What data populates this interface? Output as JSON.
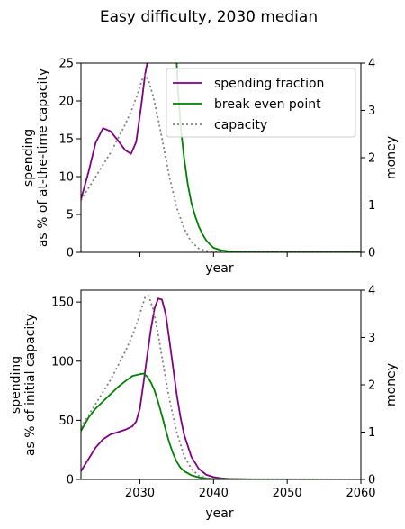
{
  "figure": {
    "title": "Easy difficulty, 2030 median"
  },
  "colors": {
    "spending_fraction": "#800080",
    "break_even_point": "#008000",
    "capacity": "#808080"
  },
  "chart_data": [
    {
      "type": "line",
      "panel": "top",
      "xlabel": "year",
      "ylabel_lines": [
        "spending",
        "as % of at-the-time capacity"
      ],
      "ylabel2": "money",
      "xlim": [
        2022,
        2060
      ],
      "ylim": [
        0,
        25
      ],
      "ylim2": [
        0,
        4
      ],
      "yticks": [
        0,
        5,
        10,
        15,
        20,
        25
      ],
      "yticks2": [
        0,
        1,
        2,
        3,
        4
      ],
      "xticks_show_labels": false,
      "legend": {
        "placement": "top-right",
        "entries": [
          "spending fraction",
          "break even point",
          "capacity"
        ]
      },
      "series": [
        {
          "name": "spending fraction",
          "axis": "left",
          "style": "solid",
          "color_key": "spending_fraction",
          "x": [
            2022,
            2023,
            2024,
            2025,
            2026,
            2027,
            2028,
            2028.8,
            2029.5,
            2030.2,
            2030.7,
            2031.0
          ],
          "y": [
            7,
            10.5,
            14.5,
            16.4,
            16.0,
            14.8,
            13.5,
            13.0,
            14.6,
            19.5,
            23.5,
            25
          ]
        },
        {
          "name": "break even point",
          "axis": "left",
          "style": "solid",
          "color_key": "break_even_point",
          "x": [
            2035.0,
            2035.2,
            2035.6,
            2036.0,
            2036.5,
            2037.0,
            2037.5,
            2038.0,
            2038.5,
            2039.0,
            2039.5,
            2040.0,
            2041.0,
            2042.0,
            2043.0,
            2045.0,
            2050.0,
            2060.0
          ],
          "y": [
            25,
            21,
            16,
            12.5,
            9,
            6.5,
            4.8,
            3.4,
            2.4,
            1.6,
            1.05,
            0.6,
            0.28,
            0.14,
            0.08,
            0.03,
            0.01,
            0.01
          ]
        },
        {
          "name": "capacity",
          "axis": "right",
          "style": "dotted",
          "color_key": "capacity",
          "x": [
            2022,
            2023,
            2024,
            2025,
            2026,
            2027,
            2028,
            2029,
            2029.8,
            2030.3,
            2030.7,
            2031.2,
            2031.8,
            2032.5,
            2033.2,
            2034,
            2035,
            2036,
            2037,
            2038,
            2039,
            2040,
            2041,
            2042,
            2060
          ],
          "y": [
            1.1,
            1.35,
            1.6,
            1.85,
            2.1,
            2.4,
            2.7,
            3.05,
            3.4,
            3.65,
            3.75,
            3.62,
            3.3,
            2.8,
            2.25,
            1.6,
            0.95,
            0.5,
            0.22,
            0.08,
            0.03,
            0.01,
            0.005,
            0.002,
            0
          ]
        }
      ]
    },
    {
      "type": "line",
      "panel": "bottom",
      "xlabel": "year",
      "ylabel_lines": [
        "spending",
        "as % of initial capacity"
      ],
      "ylabel2": "money",
      "xlim": [
        2022,
        2060
      ],
      "ylim": [
        0,
        160
      ],
      "ylim2": [
        0,
        4
      ],
      "yticks": [
        0,
        50,
        100,
        150
      ],
      "yticks2": [
        0,
        1,
        2,
        3,
        4
      ],
      "xticks": [
        2030,
        2040,
        2050,
        2060
      ],
      "series": [
        {
          "name": "spending fraction",
          "axis": "left",
          "style": "solid",
          "color_key": "spending_fraction",
          "x": [
            2022,
            2023,
            2024,
            2025,
            2026,
            2027,
            2028,
            2029,
            2029.5,
            2030,
            2030.5,
            2031,
            2031.5,
            2032,
            2032.5,
            2033,
            2033.5,
            2034,
            2034.5,
            2035,
            2035.5,
            2036,
            2037,
            2038,
            2039,
            2040,
            2041,
            2042,
            2045,
            2060
          ],
          "y": [
            7,
            17,
            27,
            34,
            38,
            40,
            42,
            45,
            49,
            60,
            82,
            105,
            127,
            145,
            153,
            152,
            140,
            118,
            95,
            72,
            53,
            38,
            19,
            9,
            4,
            2,
            1,
            0.5,
            0.2,
            0
          ]
        },
        {
          "name": "break even point",
          "axis": "left",
          "style": "solid",
          "color_key": "break_even_point",
          "x": [
            2022,
            2023,
            2024,
            2025,
            2026,
            2027,
            2028,
            2029,
            2030,
            2030.5,
            2031,
            2031.5,
            2032,
            2032.5,
            2033,
            2033.5,
            2034,
            2034.5,
            2035,
            2035.5,
            2036,
            2037,
            2038,
            2039,
            2040,
            2041,
            2042,
            2045,
            2060
          ],
          "y": [
            41,
            52,
            60,
            66,
            72,
            78,
            83,
            87.5,
            89,
            89.5,
            87,
            82,
            75,
            65,
            54,
            42,
            31,
            22,
            15,
            10,
            7,
            3.5,
            1.7,
            0.9,
            0.5,
            0.3,
            0.2,
            0.1,
            0
          ]
        },
        {
          "name": "capacity",
          "axis": "right",
          "style": "dotted",
          "color_key": "capacity",
          "x": [
            2022,
            2023,
            2024,
            2025,
            2026,
            2027,
            2028,
            2029,
            2029.8,
            2030.3,
            2030.7,
            2031.2,
            2031.8,
            2032.5,
            2033.2,
            2034,
            2035,
            2036,
            2037,
            2038,
            2039,
            2040,
            2041,
            2042,
            2060
          ],
          "y": [
            1.1,
            1.35,
            1.6,
            1.85,
            2.1,
            2.4,
            2.7,
            3.05,
            3.4,
            3.65,
            3.85,
            3.88,
            3.6,
            3.05,
            2.4,
            1.7,
            1.0,
            0.5,
            0.22,
            0.08,
            0.03,
            0.01,
            0.005,
            0.002,
            0
          ]
        }
      ]
    }
  ]
}
